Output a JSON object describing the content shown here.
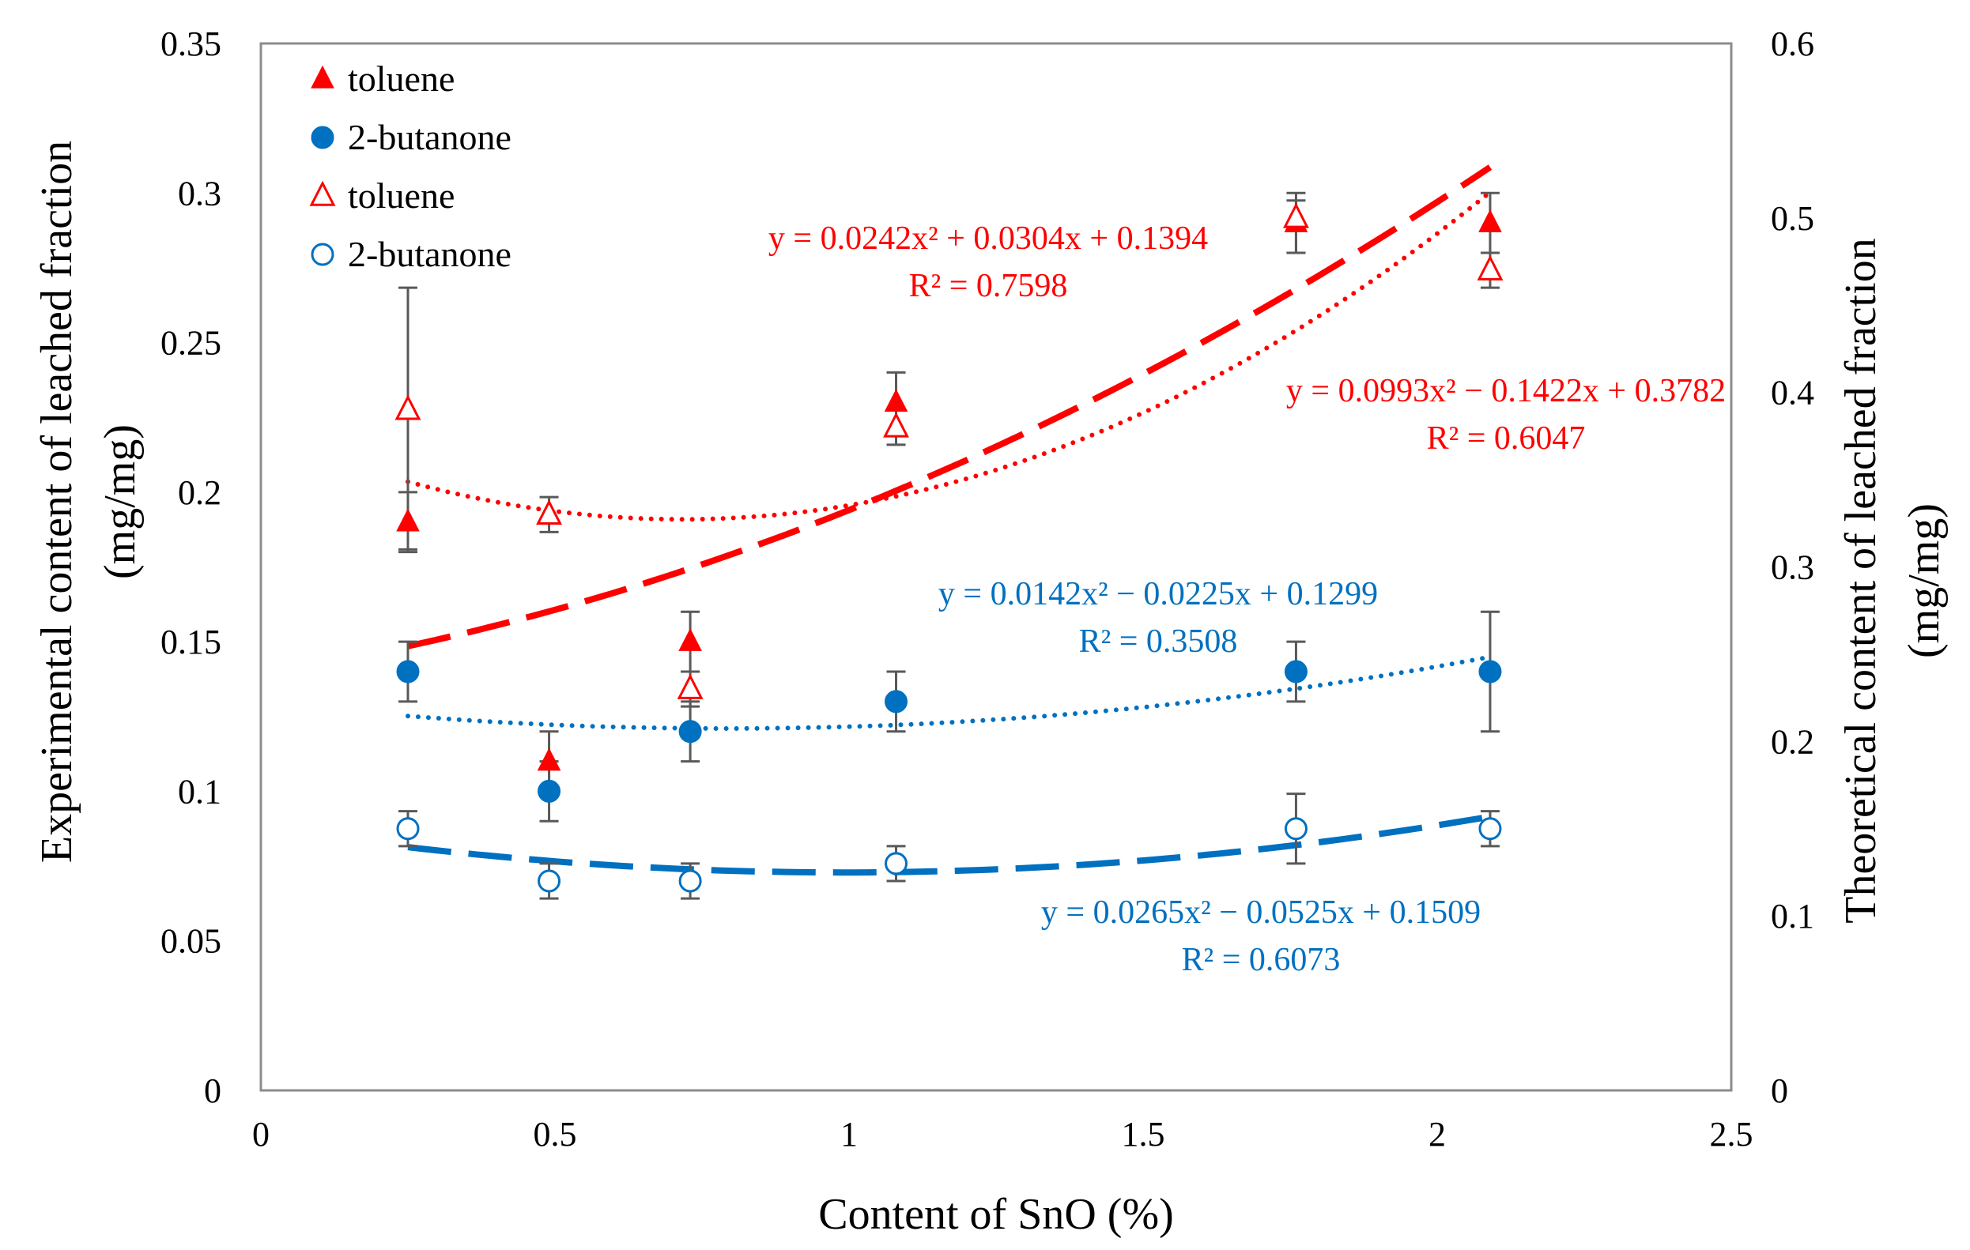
{
  "chart_data": {
    "type": "scatter",
    "xlabel": "Content of SnO (%)",
    "ylabel_left": [
      "Experimental content of leached fraction",
      "(mg/mg)"
    ],
    "ylabel_right": [
      "Theoretical content of leached fraction",
      "(mg/mg)"
    ],
    "xlim": [
      0,
      2.5
    ],
    "ylim_left": [
      0,
      0.35
    ],
    "ylim_right": [
      0,
      0.6
    ],
    "xticks": [
      {
        "value": 0,
        "label": "0"
      },
      {
        "value": 0.5,
        "label": "0.5"
      },
      {
        "value": 1,
        "label": "1"
      },
      {
        "value": 1.5,
        "label": "1.5"
      },
      {
        "value": 2,
        "label": "2"
      },
      {
        "value": 2.5,
        "label": "2.5"
      }
    ],
    "yticks_left": [
      {
        "value": 0,
        "label": "0"
      },
      {
        "value": 0.05,
        "label": "0.05"
      },
      {
        "value": 0.1,
        "label": "0.1"
      },
      {
        "value": 0.15,
        "label": "0.15"
      },
      {
        "value": 0.2,
        "label": "0.2"
      },
      {
        "value": 0.25,
        "label": "0.25"
      },
      {
        "value": 0.3,
        "label": "0.3"
      },
      {
        "value": 0.35,
        "label": "0.35"
      }
    ],
    "yticks_right": [
      {
        "value": 0,
        "label": "0"
      },
      {
        "value": 0.1,
        "label": "0.1"
      },
      {
        "value": 0.2,
        "label": "0.2"
      },
      {
        "value": 0.3,
        "label": "0.3"
      },
      {
        "value": 0.4,
        "label": "0.4"
      },
      {
        "value": 0.5,
        "label": "0.5"
      },
      {
        "value": 0.6,
        "label": "0.6"
      }
    ],
    "x": [
      0.25,
      0.49,
      0.73,
      1.08,
      1.76,
      2.09
    ],
    "series": [
      {
        "name": "toluene",
        "kind": "experimental",
        "axis": "left",
        "marker": "triangle-filled",
        "color": "#ff0000",
        "values": [
          0.19,
          0.11,
          0.15,
          0.23,
          0.29,
          0.29
        ],
        "err_low": [
          0.18,
          0.1,
          0.14,
          0.22,
          0.28,
          0.28
        ],
        "err_high": [
          0.2,
          0.12,
          0.16,
          0.24,
          0.3,
          0.3
        ]
      },
      {
        "name": "2-butanone",
        "kind": "experimental",
        "axis": "left",
        "marker": "circle-filled",
        "color": "#0070c0",
        "values": [
          0.14,
          0.1,
          0.12,
          0.13,
          0.14,
          0.14
        ],
        "err_low": [
          0.13,
          0.09,
          0.11,
          0.12,
          0.13,
          0.12
        ],
        "err_high": [
          0.15,
          0.11,
          0.13,
          0.14,
          0.15,
          0.16
        ]
      },
      {
        "name": "toluene",
        "kind": "theoretical",
        "axis": "right",
        "marker": "triangle-open",
        "color": "#ff0000",
        "values": [
          0.39,
          0.33,
          0.23,
          0.38,
          0.5,
          0.47
        ],
        "err_low": [
          0.31,
          0.32,
          0.22,
          0.37,
          0.48,
          0.46
        ],
        "err_high": [
          0.46,
          0.34,
          0.24,
          0.39,
          0.51,
          0.48
        ]
      },
      {
        "name": "2-butanone",
        "kind": "theoretical",
        "axis": "right",
        "marker": "circle-open",
        "color": "#0070c0",
        "values": [
          0.15,
          0.12,
          0.12,
          0.13,
          0.15,
          0.15
        ],
        "err_low": [
          0.14,
          0.11,
          0.11,
          0.12,
          0.13,
          0.14
        ],
        "err_high": [
          0.16,
          0.13,
          0.13,
          0.14,
          0.17,
          0.16
        ]
      }
    ],
    "trendlines": [
      {
        "series": "toluene experimental",
        "axis": "left",
        "style": "dash",
        "color": "#ff0000",
        "coefficients": [
          0.0242,
          0.0304,
          0.1394
        ],
        "x_range": [
          0.25,
          2.09
        ],
        "equation": "y = 0.0242x² + 0.0304x + 0.1394",
        "r2": "R² = 0.7598"
      },
      {
        "series": "toluene theoretical",
        "axis": "right",
        "style": "dot",
        "color": "#ff0000",
        "coefficients": [
          0.0993,
          -0.1422,
          0.3782
        ],
        "x_range": [
          0.25,
          2.09
        ],
        "equation": "y = 0.0993x² − 0.1422x + 0.3782",
        "r2": "R² = 0.6047"
      },
      {
        "series": "2-butanone experimental",
        "axis": "left",
        "style": "dot",
        "color": "#0070c0",
        "coefficients": [
          0.0142,
          -0.0225,
          0.1299
        ],
        "x_range": [
          0.25,
          2.09
        ],
        "equation": "y = 0.0142x² − 0.0225x + 0.1299",
        "r2": "R² = 0.3508"
      },
      {
        "series": "2-butanone theoretical",
        "axis": "right",
        "style": "dash",
        "color": "#0070c0",
        "coefficients": [
          0.0265,
          -0.0525,
          0.1509
        ],
        "x_range": [
          0.25,
          2.09
        ],
        "equation": "y = 0.0265x² − 0.0525x + 0.1509",
        "r2": "R² = 0.6073"
      }
    ],
    "legend": {
      "placement": "top-left",
      "entries": [
        {
          "label": "toluene",
          "marker": "triangle-filled",
          "color": "#ff0000"
        },
        {
          "label": "2-butanone",
          "marker": "circle-filled",
          "color": "#0070c0"
        },
        {
          "label": "toluene",
          "marker": "triangle-open",
          "color": "#ff0000"
        },
        {
          "label": "2-butanone",
          "marker": "circle-open",
          "color": "#0070c0"
        }
      ]
    },
    "grid": false
  }
}
